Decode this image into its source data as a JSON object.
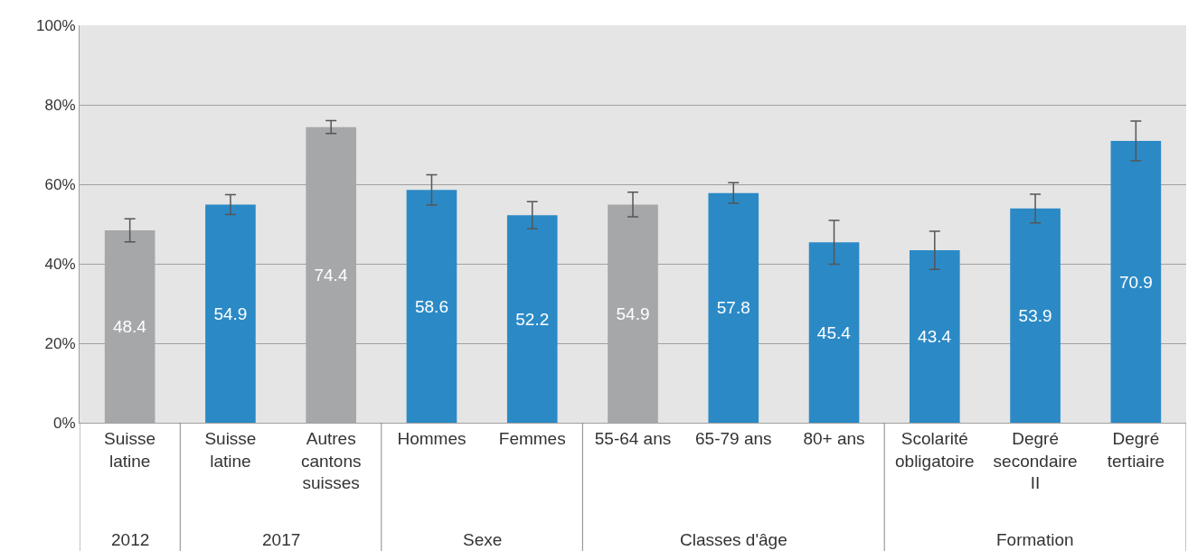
{
  "chart_data": {
    "type": "bar",
    "categories": [
      "Suisse latine",
      "Suisse latine",
      "Autres cantons suisses",
      "Hommes",
      "Femmes",
      "55-64 ans",
      "65-79 ans",
      "80+ ans",
      "Scolarité obligatoire",
      "Degré secondaire II",
      "Degré tertiaire"
    ],
    "values": [
      48.4,
      54.9,
      74.4,
      58.6,
      52.2,
      54.9,
      57.8,
      45.4,
      43.4,
      53.9,
      70.9
    ],
    "colors": [
      "#a6a7a9",
      "#2b8ac6",
      "#a6a7a9",
      "#2b8ac6",
      "#2b8ac6",
      "#a6a7a9",
      "#2b8ac6",
      "#2b8ac6",
      "#2b8ac6",
      "#2b8ac6",
      "#2b8ac6"
    ],
    "errors": [
      2.9,
      2.5,
      1.6,
      3.8,
      3.4,
      3.1,
      2.6,
      5.5,
      4.8,
      3.6,
      5
    ],
    "data_labels": true,
    "annotations": [
      "2012",
      "2017",
      "Sexe",
      "Classes d'âge",
      "Formation"
    ],
    "ylim": [
      0,
      100
    ],
    "yticks": [
      {
        "value": 0,
        "label": "0%"
      },
      {
        "value": 20,
        "label": "20%"
      },
      {
        "value": 40,
        "label": "40%"
      },
      {
        "value": 60,
        "label": "60%"
      },
      {
        "value": 80,
        "label": "80%"
      },
      {
        "value": 100,
        "label": "100%"
      }
    ],
    "grid": "y"
  }
}
